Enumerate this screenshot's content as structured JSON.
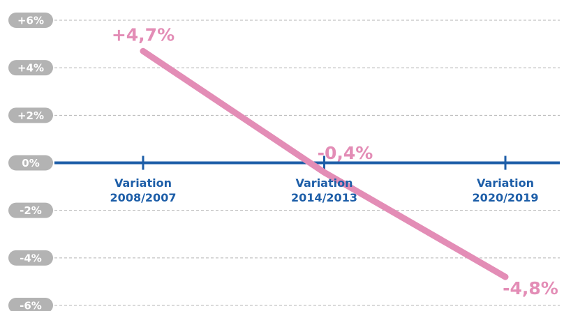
{
  "chart_data": {
    "type": "line",
    "categories": [
      "Variation 2008/2007",
      "Variation 2014/2013",
      "Variation 2020/2019"
    ],
    "series": [
      {
        "color": "#e38db6",
        "values": [
          4.7,
          -0.4,
          -4.8
        ],
        "value_labels": [
          "+4,7%",
          "-0,4%",
          "-4,8%"
        ]
      }
    ],
    "ylim": [
      -6,
      6
    ],
    "yticks": [
      {
        "value": 6,
        "label": "+6%"
      },
      {
        "value": 4,
        "label": "+4%"
      },
      {
        "value": 2,
        "label": "+2%"
      },
      {
        "value": 0,
        "label": "0%"
      },
      {
        "value": -2,
        "label": "-2%"
      },
      {
        "value": -4,
        "label": "-4%"
      },
      {
        "value": -6,
        "label": "-6%"
      }
    ],
    "grid": true,
    "axis_color": "#1d5ea8"
  }
}
